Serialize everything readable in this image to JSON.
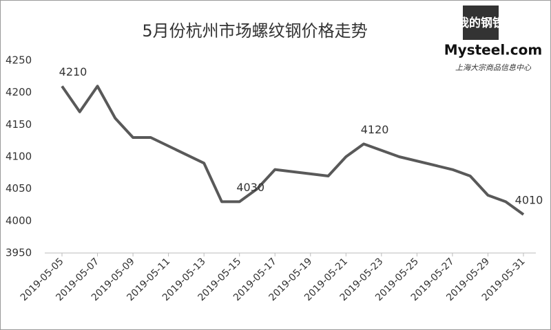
{
  "chart_data": {
    "type": "line",
    "title": "5月份杭州市场螺纹钢价格走势",
    "logo": {
      "mark": "我的钢铁",
      "brand": "Mysteel.com",
      "tagline": "上海大宗商品信息中心"
    },
    "x": [
      "2019-05-05",
      "2019-05-06",
      "2019-05-07",
      "2019-05-08",
      "2019-05-09",
      "2019-05-10",
      "2019-05-13",
      "2019-05-14",
      "2019-05-15",
      "2019-05-16",
      "2019-05-17",
      "2019-05-20",
      "2019-05-21",
      "2019-05-22",
      "2019-05-24",
      "2019-05-27",
      "2019-05-28",
      "2019-05-29",
      "2019-05-30",
      "2019-05-31"
    ],
    "series": [
      {
        "color": "#595959",
        "values": [
          4210,
          4170,
          4210,
          4160,
          4130,
          4130,
          4090,
          4030,
          4030,
          4050,
          4080,
          4070,
          4100,
          4120,
          4100,
          4080,
          4070,
          4040,
          4030,
          4010
        ],
        "value_labels": [
          "4210",
          null,
          null,
          null,
          null,
          null,
          null,
          null,
          "4030",
          null,
          null,
          null,
          null,
          "4120",
          null,
          null,
          null,
          null,
          null,
          "4010"
        ]
      }
    ],
    "xticks": [
      "2019-05-05",
      "2019-05-07",
      "2019-05-09",
      "2019-05-11",
      "2019-05-13",
      "2019-05-15",
      "2019-05-17",
      "2019-05-19",
      "2019-05-21",
      "2019-05-23",
      "2019-05-25",
      "2019-05-27",
      "2019-05-29",
      "2019-05-31"
    ],
    "ylim": [
      3950,
      4250
    ],
    "yticks": [
      3950,
      4000,
      4050,
      4100,
      4150,
      4200,
      4250
    ],
    "grid": false
  }
}
